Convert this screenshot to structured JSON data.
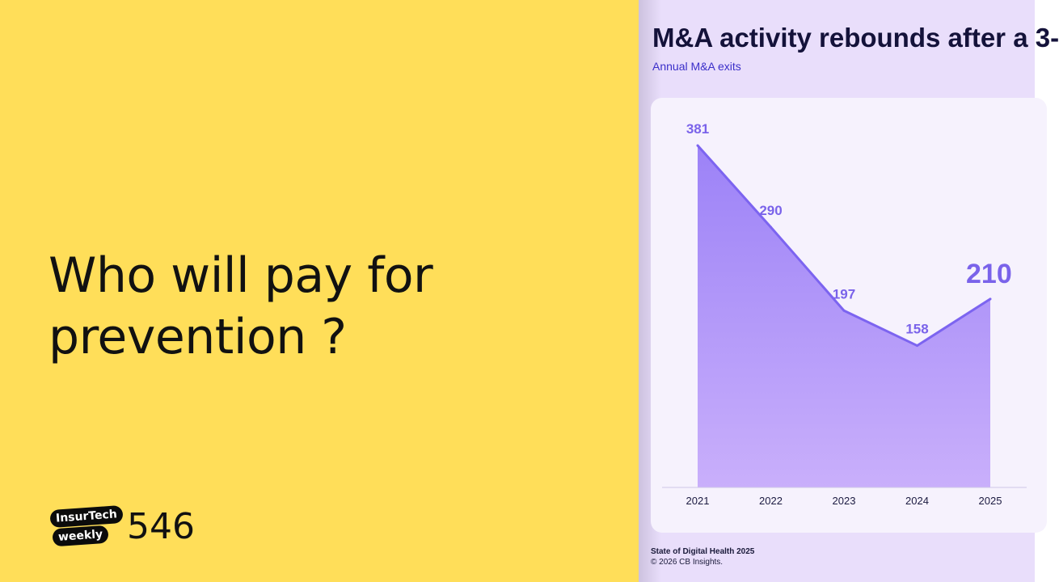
{
  "left_panel": {
    "headline": "Who will pay for prevention ?",
    "brand_line1": "InsurTech",
    "brand_line2": "weekly",
    "issue_number": "546"
  },
  "right_panel": {
    "title": "M&A activity rebounds after a 3-",
    "subtitle": "Annual M&A exits",
    "footer_source": "State of Digital Health 2025",
    "footer_copy": "© 2026 CB Insights."
  },
  "colors": {
    "left_bg": "#FFDE59",
    "right_bg": "#E9DEFB",
    "line": "#7C64F0",
    "area_top": "#9C82F7",
    "area_bottom": "#C9AFFB",
    "label": "#7A63EA"
  },
  "chart_data": {
    "type": "area",
    "title": "M&A activity rebounds after a 3-",
    "subtitle": "Annual M&A exits",
    "categories": [
      "2021",
      "2022",
      "2023",
      "2024",
      "2025"
    ],
    "values": [
      381,
      290,
      197,
      158,
      210
    ],
    "data_labels": [
      "381",
      "290",
      "197",
      "158",
      "210"
    ],
    "ylim": [
      0,
      381
    ],
    "grid": false,
    "highlight_last": true
  }
}
